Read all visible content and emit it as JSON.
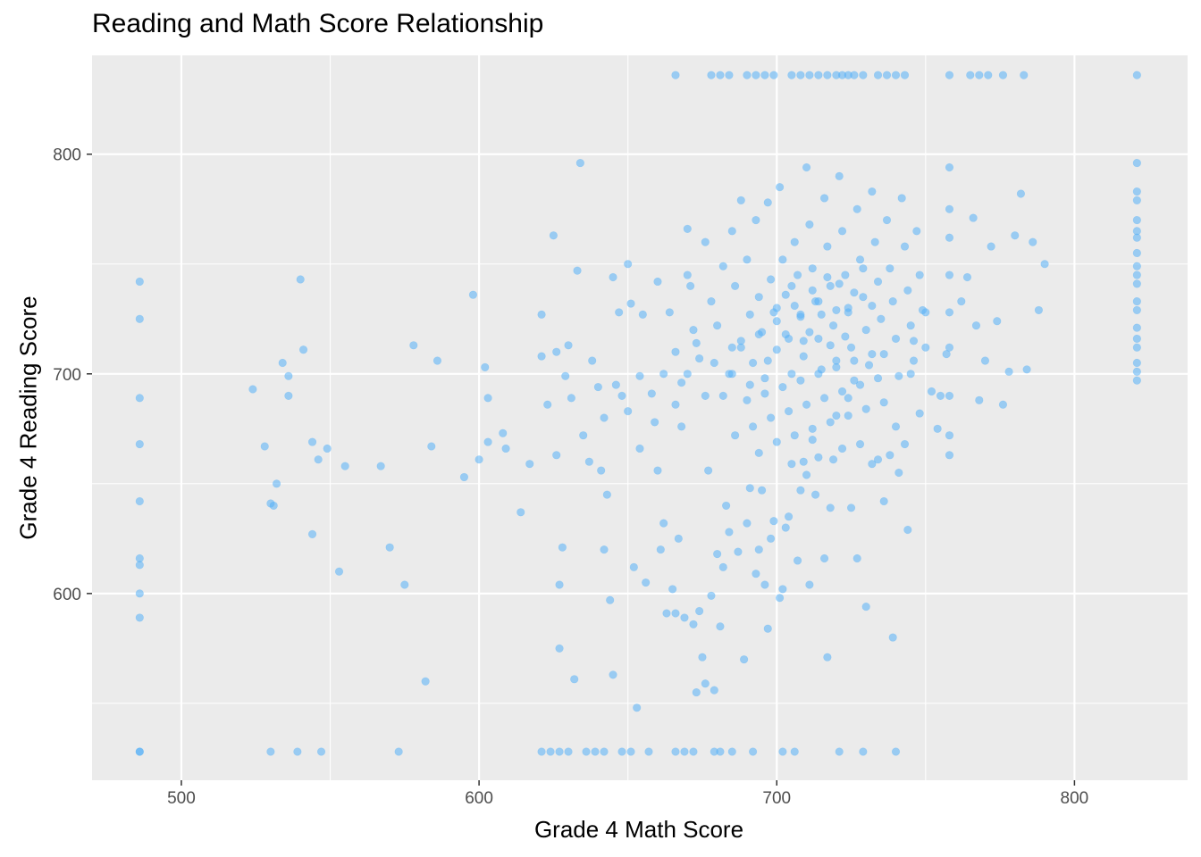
{
  "chart_data": {
    "type": "scatter",
    "title": "Reading and Math Score Relationship",
    "xlabel": "Grade 4 Math Score",
    "ylabel": "Grade 4 Reading Score",
    "xlim": [
      470,
      838
    ],
    "ylim": [
      515,
      845
    ],
    "x_ticks": [
      500,
      600,
      700,
      800
    ],
    "y_ticks": [
      600,
      700,
      800
    ],
    "grid": true,
    "point_color": "#56B1F7",
    "panel_background": "#EBEBEB",
    "points": [
      [
        486,
        742
      ],
      [
        486,
        725
      ],
      [
        486,
        689
      ],
      [
        486,
        668
      ],
      [
        486,
        642
      ],
      [
        486,
        616
      ],
      [
        486,
        613
      ],
      [
        486,
        600
      ],
      [
        486,
        589
      ],
      [
        486,
        528
      ],
      [
        524,
        693
      ],
      [
        528,
        667
      ],
      [
        530,
        641
      ],
      [
        531,
        640
      ],
      [
        532,
        650
      ],
      [
        534,
        705
      ],
      [
        536,
        699
      ],
      [
        536,
        690
      ],
      [
        540,
        743
      ],
      [
        541,
        711
      ],
      [
        544,
        669
      ],
      [
        544,
        627
      ],
      [
        546,
        661
      ],
      [
        549,
        666
      ],
      [
        553,
        610
      ],
      [
        555,
        658
      ],
      [
        567,
        658
      ],
      [
        570,
        621
      ],
      [
        575,
        604
      ],
      [
        578,
        713
      ],
      [
        582,
        560
      ],
      [
        584,
        667
      ],
      [
        586,
        706
      ],
      [
        595,
        653
      ],
      [
        598,
        736
      ],
      [
        600,
        661
      ],
      [
        602,
        703
      ],
      [
        603,
        689
      ],
      [
        603,
        669
      ],
      [
        608,
        673
      ],
      [
        609,
        666
      ],
      [
        614,
        637
      ],
      [
        617,
        659
      ],
      [
        621,
        727
      ],
      [
        621,
        708
      ],
      [
        623,
        686
      ],
      [
        625,
        763
      ],
      [
        626,
        710
      ],
      [
        626,
        663
      ],
      [
        627,
        604
      ],
      [
        627,
        575
      ],
      [
        628,
        621
      ],
      [
        629,
        699
      ],
      [
        630,
        713
      ],
      [
        631,
        689
      ],
      [
        632,
        561
      ],
      [
        633,
        747
      ],
      [
        634,
        796
      ],
      [
        635,
        672
      ],
      [
        637,
        660
      ],
      [
        638,
        706
      ],
      [
        640,
        694
      ],
      [
        641,
        656
      ],
      [
        642,
        620
      ],
      [
        643,
        645
      ],
      [
        644,
        597
      ],
      [
        645,
        744
      ],
      [
        645,
        563
      ],
      [
        647,
        728
      ],
      [
        648,
        690
      ],
      [
        650,
        750
      ],
      [
        651,
        732
      ],
      [
        652,
        612
      ],
      [
        653,
        548
      ],
      [
        654,
        666
      ],
      [
        655,
        727
      ],
      [
        656,
        605
      ],
      [
        659,
        678
      ],
      [
        660,
        656
      ],
      [
        661,
        620
      ],
      [
        662,
        632
      ],
      [
        663,
        591
      ],
      [
        665,
        602
      ],
      [
        666,
        591
      ],
      [
        667,
        625
      ],
      [
        668,
        676
      ],
      [
        669,
        589
      ],
      [
        670,
        766
      ],
      [
        671,
        740
      ],
      [
        672,
        586
      ],
      [
        673,
        555
      ],
      [
        674,
        592
      ],
      [
        675,
        571
      ],
      [
        676,
        559
      ],
      [
        677,
        656
      ],
      [
        678,
        599
      ],
      [
        679,
        556
      ],
      [
        680,
        618
      ],
      [
        681,
        585
      ],
      [
        682,
        612
      ],
      [
        683,
        640
      ],
      [
        684,
        628
      ],
      [
        686,
        672
      ],
      [
        687,
        619
      ],
      [
        688,
        779
      ],
      [
        689,
        570
      ],
      [
        690,
        632
      ],
      [
        691,
        648
      ],
      [
        693,
        609
      ],
      [
        694,
        620
      ],
      [
        695,
        647
      ],
      [
        696,
        604
      ],
      [
        697,
        584
      ],
      [
        698,
        625
      ],
      [
        699,
        633
      ],
      [
        701,
        598
      ],
      [
        702,
        602
      ],
      [
        703,
        630
      ],
      [
        704,
        635
      ],
      [
        705,
        659
      ],
      [
        707,
        615
      ],
      [
        708,
        647
      ],
      [
        709,
        660
      ],
      [
        710,
        654
      ],
      [
        711,
        604
      ],
      [
        712,
        670
      ],
      [
        713,
        645
      ],
      [
        714,
        662
      ],
      [
        716,
        616
      ],
      [
        717,
        571
      ],
      [
        718,
        639
      ],
      [
        719,
        661
      ],
      [
        720,
        681
      ],
      [
        722,
        666
      ],
      [
        724,
        689
      ],
      [
        725,
        639
      ],
      [
        727,
        616
      ],
      [
        728,
        668
      ],
      [
        730,
        594
      ],
      [
        732,
        659
      ],
      [
        734,
        661
      ],
      [
        736,
        642
      ],
      [
        738,
        663
      ],
      [
        739,
        580
      ],
      [
        740,
        676
      ],
      [
        741,
        655
      ],
      [
        743,
        668
      ],
      [
        744,
        629
      ],
      [
        745,
        700
      ],
      [
        746,
        715
      ],
      [
        748,
        682
      ],
      [
        750,
        728
      ],
      [
        752,
        692
      ],
      [
        754,
        675
      ],
      [
        755,
        690
      ],
      [
        757,
        709
      ],
      [
        758,
        663
      ],
      [
        758,
        672
      ],
      [
        758,
        690
      ],
      [
        758,
        712
      ],
      [
        758,
        728
      ],
      [
        758,
        745
      ],
      [
        758,
        762
      ],
      [
        758,
        775
      ],
      [
        758,
        794
      ],
      [
        762,
        733
      ],
      [
        764,
        744
      ],
      [
        766,
        771
      ],
      [
        767,
        722
      ],
      [
        768,
        688
      ],
      [
        770,
        706
      ],
      [
        772,
        758
      ],
      [
        774,
        724
      ],
      [
        776,
        686
      ],
      [
        778,
        701
      ],
      [
        780,
        763
      ],
      [
        782,
        782
      ],
      [
        784,
        702
      ],
      [
        786,
        760
      ],
      [
        788,
        729
      ],
      [
        790,
        750
      ],
      [
        660,
        742
      ],
      [
        664,
        728
      ],
      [
        666,
        710
      ],
      [
        668,
        696
      ],
      [
        670,
        745
      ],
      [
        672,
        720
      ],
      [
        674,
        707
      ],
      [
        676,
        760
      ],
      [
        678,
        733
      ],
      [
        680,
        722
      ],
      [
        682,
        749
      ],
      [
        684,
        700
      ],
      [
        685,
        765
      ],
      [
        686,
        740
      ],
      [
        688,
        712
      ],
      [
        690,
        752
      ],
      [
        691,
        727
      ],
      [
        692,
        705
      ],
      [
        693,
        770
      ],
      [
        694,
        735
      ],
      [
        695,
        719
      ],
      [
        696,
        698
      ],
      [
        697,
        778
      ],
      [
        698,
        743
      ],
      [
        699,
        728
      ],
      [
        700,
        711
      ],
      [
        701,
        785
      ],
      [
        702,
        752
      ],
      [
        703,
        736
      ],
      [
        704,
        716
      ],
      [
        705,
        700
      ],
      [
        706,
        760
      ],
      [
        707,
        745
      ],
      [
        708,
        726
      ],
      [
        709,
        708
      ],
      [
        710,
        794
      ],
      [
        711,
        768
      ],
      [
        712,
        748
      ],
      [
        713,
        733
      ],
      [
        714,
        716
      ],
      [
        715,
        702
      ],
      [
        716,
        780
      ],
      [
        717,
        758
      ],
      [
        718,
        740
      ],
      [
        719,
        722
      ],
      [
        720,
        706
      ],
      [
        721,
        790
      ],
      [
        722,
        765
      ],
      [
        723,
        745
      ],
      [
        724,
        728
      ],
      [
        725,
        712
      ],
      [
        726,
        697
      ],
      [
        727,
        775
      ],
      [
        728,
        752
      ],
      [
        729,
        735
      ],
      [
        730,
        720
      ],
      [
        731,
        704
      ],
      [
        732,
        783
      ],
      [
        733,
        760
      ],
      [
        734,
        742
      ],
      [
        735,
        725
      ],
      [
        736,
        709
      ],
      [
        737,
        770
      ],
      [
        738,
        748
      ],
      [
        739,
        733
      ],
      [
        740,
        716
      ],
      [
        741,
        699
      ],
      [
        742,
        780
      ],
      [
        743,
        758
      ],
      [
        744,
        738
      ],
      [
        745,
        722
      ],
      [
        746,
        706
      ],
      [
        747,
        765
      ],
      [
        748,
        745
      ],
      [
        749,
        729
      ],
      [
        750,
        712
      ],
      [
        690,
        688
      ],
      [
        692,
        676
      ],
      [
        694,
        664
      ],
      [
        696,
        691
      ],
      [
        698,
        680
      ],
      [
        700,
        669
      ],
      [
        702,
        694
      ],
      [
        704,
        683
      ],
      [
        706,
        672
      ],
      [
        708,
        697
      ],
      [
        710,
        686
      ],
      [
        712,
        675
      ],
      [
        714,
        700
      ],
      [
        716,
        689
      ],
      [
        718,
        678
      ],
      [
        720,
        703
      ],
      [
        722,
        692
      ],
      [
        724,
        681
      ],
      [
        726,
        706
      ],
      [
        728,
        695
      ],
      [
        730,
        684
      ],
      [
        732,
        709
      ],
      [
        734,
        698
      ],
      [
        736,
        687
      ],
      [
        700,
        724
      ],
      [
        703,
        718
      ],
      [
        706,
        731
      ],
      [
        709,
        715
      ],
      [
        712,
        738
      ],
      [
        715,
        727
      ],
      [
        718,
        713
      ],
      [
        721,
        741
      ],
      [
        724,
        730
      ],
      [
        705,
        740
      ],
      [
        708,
        727
      ],
      [
        711,
        719
      ],
      [
        714,
        733
      ],
      [
        717,
        744
      ],
      [
        720,
        729
      ],
      [
        723,
        717
      ],
      [
        726,
        737
      ],
      [
        729,
        748
      ],
      [
        732,
        731
      ],
      [
        685,
        700
      ],
      [
        688,
        715
      ],
      [
        691,
        695
      ],
      [
        694,
        718
      ],
      [
        697,
        706
      ],
      [
        700,
        730
      ],
      [
        676,
        690
      ],
      [
        679,
        705
      ],
      [
        682,
        690
      ],
      [
        685,
        712
      ],
      [
        670,
        700
      ],
      [
        673,
        714
      ],
      [
        666,
        686
      ],
      [
        662,
        700
      ],
      [
        658,
        691
      ],
      [
        654,
        699
      ],
      [
        650,
        683
      ],
      [
        646,
        695
      ],
      [
        642,
        680
      ],
      [
        666,
        836
      ],
      [
        678,
        836
      ],
      [
        681,
        836
      ],
      [
        684,
        836
      ],
      [
        690,
        836
      ],
      [
        693,
        836
      ],
      [
        696,
        836
      ],
      [
        699,
        836
      ],
      [
        705,
        836
      ],
      [
        708,
        836
      ],
      [
        711,
        836
      ],
      [
        714,
        836
      ],
      [
        717,
        836
      ],
      [
        720,
        836
      ],
      [
        722,
        836
      ],
      [
        724,
        836
      ],
      [
        726,
        836
      ],
      [
        729,
        836
      ],
      [
        734,
        836
      ],
      [
        737,
        836
      ],
      [
        740,
        836
      ],
      [
        743,
        836
      ],
      [
        758,
        836
      ],
      [
        765,
        836
      ],
      [
        768,
        836
      ],
      [
        771,
        836
      ],
      [
        776,
        836
      ],
      [
        783,
        836
      ],
      [
        821,
        836
      ],
      [
        486,
        528
      ],
      [
        530,
        528
      ],
      [
        539,
        528
      ],
      [
        547,
        528
      ],
      [
        573,
        528
      ],
      [
        621,
        528
      ],
      [
        624,
        528
      ],
      [
        627,
        528
      ],
      [
        630,
        528
      ],
      [
        636,
        528
      ],
      [
        639,
        528
      ],
      [
        642,
        528
      ],
      [
        648,
        528
      ],
      [
        651,
        528
      ],
      [
        657,
        528
      ],
      [
        666,
        528
      ],
      [
        669,
        528
      ],
      [
        672,
        528
      ],
      [
        679,
        528
      ],
      [
        681,
        528
      ],
      [
        685,
        528
      ],
      [
        692,
        528
      ],
      [
        702,
        528
      ],
      [
        706,
        528
      ],
      [
        721,
        528
      ],
      [
        729,
        528
      ],
      [
        740,
        528
      ],
      [
        821,
        796
      ],
      [
        821,
        783
      ],
      [
        821,
        779
      ],
      [
        821,
        770
      ],
      [
        821,
        765
      ],
      [
        821,
        762
      ],
      [
        821,
        755
      ],
      [
        821,
        749
      ],
      [
        821,
        745
      ],
      [
        821,
        741
      ],
      [
        821,
        733
      ],
      [
        821,
        729
      ],
      [
        821,
        721
      ],
      [
        821,
        716
      ],
      [
        821,
        712
      ],
      [
        821,
        705
      ],
      [
        821,
        701
      ],
      [
        821,
        697
      ]
    ]
  }
}
